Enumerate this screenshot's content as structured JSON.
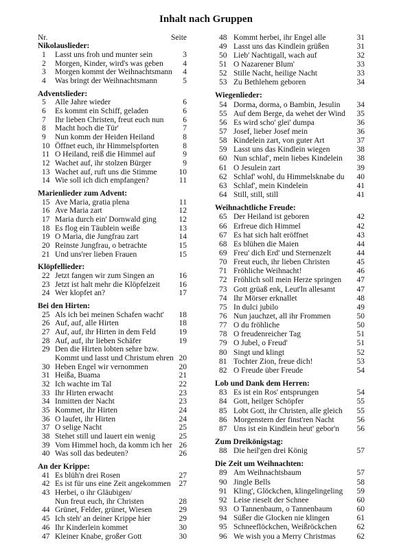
{
  "title": "Inhalt nach Gruppen",
  "header": {
    "nr": "Nr.",
    "page": "Seite"
  },
  "columns": [
    {
      "blocks": [
        {
          "title": "Nikolauslieder:",
          "entries": [
            {
              "nr": 1,
              "lines": [
                "Lasst uns froh und munter sein"
              ],
              "page": 3
            },
            {
              "nr": 2,
              "lines": [
                "Morgen, Kinder, wird's was geben"
              ],
              "page": 4
            },
            {
              "nr": 3,
              "lines": [
                "Morgen kommt der Weihnachtsmann"
              ],
              "page": 4
            },
            {
              "nr": 4,
              "lines": [
                "Was bringt der Weihnachtsmann"
              ],
              "page": 5
            }
          ]
        },
        {
          "title": "Adventslieder:",
          "entries": [
            {
              "nr": 5,
              "lines": [
                "Alle Jahre wieder"
              ],
              "page": 6
            },
            {
              "nr": 6,
              "lines": [
                "Es kommt ein Schiff, geladen"
              ],
              "page": 6
            },
            {
              "nr": 7,
              "lines": [
                "Ihr lieben Christen, freut euch nun"
              ],
              "page": 6
            },
            {
              "nr": 8,
              "lines": [
                "Macht hoch die Tür'"
              ],
              "page": 7
            },
            {
              "nr": 9,
              "lines": [
                "Nun komm der Heiden Heiland"
              ],
              "page": 8
            },
            {
              "nr": 10,
              "lines": [
                "Öffnet euch, ihr Himmelspforten"
              ],
              "page": 8
            },
            {
              "nr": 11,
              "lines": [
                "O Heiland, reiß die Himmel auf"
              ],
              "page": 9
            },
            {
              "nr": 12,
              "lines": [
                "Wachet auf, ihr stolzen Bürger"
              ],
              "page": 9
            },
            {
              "nr": 13,
              "lines": [
                "Wachet auf, ruft uns die Stimme"
              ],
              "page": 10
            },
            {
              "nr": 14,
              "lines": [
                "Wie soll ich dich empfangen?"
              ],
              "page": 11
            }
          ]
        },
        {
          "title": "Marienlieder zum Advent:",
          "entries": [
            {
              "nr": 15,
              "lines": [
                "Ave Maria, gratia plena"
              ],
              "page": 11
            },
            {
              "nr": 16,
              "lines": [
                "Ave Maria zart"
              ],
              "page": 12
            },
            {
              "nr": 17,
              "lines": [
                "Maria durch ein' Dornwald ging"
              ],
              "page": 12
            },
            {
              "nr": 18,
              "lines": [
                "Es flog ein Täublein weiße"
              ],
              "page": 13
            },
            {
              "nr": 19,
              "lines": [
                "O Maria, die Jungfrau zart"
              ],
              "page": 14
            },
            {
              "nr": 20,
              "lines": [
                "Reinste Jungfrau, o betrachte"
              ],
              "page": 15
            },
            {
              "nr": 21,
              "lines": [
                "Und uns'rer lieben Frauen"
              ],
              "page": 15
            }
          ]
        },
        {
          "title": "Klöpfellieder:",
          "entries": [
            {
              "nr": 22,
              "lines": [
                "Jetzt fangen wir zum Singen an"
              ],
              "page": 16
            },
            {
              "nr": 23,
              "lines": [
                "Jetzt ist halt mehr die Klöpfelzeit"
              ],
              "page": 16
            },
            {
              "nr": 24,
              "lines": [
                "Wer klopfet an?"
              ],
              "page": 17
            }
          ]
        },
        {
          "title": "Bei den Hirten:",
          "entries": [
            {
              "nr": 25,
              "lines": [
                "Als ich bei meinen Schafen wacht'"
              ],
              "page": 18
            },
            {
              "nr": 26,
              "lines": [
                "Auf, auf, alle Hirten"
              ],
              "page": 18
            },
            {
              "nr": 27,
              "lines": [
                "Auf, auf, ihr Hirten in dem Feld"
              ],
              "page": 19
            },
            {
              "nr": 28,
              "lines": [
                "Auf, auf, ihr lieben Schäfer"
              ],
              "page": 19
            },
            {
              "nr": 29,
              "lines": [
                "Den die Hirten lobten sehre bzw.",
                "Kommt und lasst und Christum ehren"
              ],
              "page": 20
            },
            {
              "nr": 30,
              "lines": [
                "Heben Engel wir vernommen"
              ],
              "page": 20
            },
            {
              "nr": 31,
              "lines": [
                "Heißa, Buama"
              ],
              "page": 21
            },
            {
              "nr": 32,
              "lines": [
                "Ich wachte im Tal"
              ],
              "page": 22
            },
            {
              "nr": 33,
              "lines": [
                "Ihr Hirten erwacht"
              ],
              "page": 23
            },
            {
              "nr": 34,
              "lines": [
                "Inmitten der Nacht"
              ],
              "page": 23
            },
            {
              "nr": 35,
              "lines": [
                "Kommet, ihr Hirten"
              ],
              "page": 24
            },
            {
              "nr": 36,
              "lines": [
                "O laufet, ihr Hirten"
              ],
              "page": 24
            },
            {
              "nr": 37,
              "lines": [
                "O selige Nacht"
              ],
              "page": 25
            },
            {
              "nr": 38,
              "lines": [
                "Stehet still und lauert ein wenig"
              ],
              "page": 25
            },
            {
              "nr": 39,
              "lines": [
                "Vom Himmel hoch, da komm ich her"
              ],
              "page": 26
            },
            {
              "nr": 40,
              "lines": [
                "Was soll das bedeuten?"
              ],
              "page": 26
            }
          ]
        },
        {
          "title": "An der Krippe:",
          "entries": [
            {
              "nr": 41,
              "lines": [
                "Es blüh'n drei Rosen"
              ],
              "page": 27
            },
            {
              "nr": 42,
              "lines": [
                "Es ist für uns eine Zeit angekommen"
              ],
              "page": 27
            },
            {
              "nr": 43,
              "lines": [
                "Herbei, o ihr Gläubigen/",
                "Nun freut euch, ihr Christen"
              ],
              "page": 28
            },
            {
              "nr": 44,
              "lines": [
                "Grünet, Felder, grünet, Wiesen"
              ],
              "page": 29
            },
            {
              "nr": 45,
              "lines": [
                "Ich steh' an deiner Krippe hier"
              ],
              "page": 29
            },
            {
              "nr": 46,
              "lines": [
                "Ihr Kinderlein kommet"
              ],
              "page": 30
            },
            {
              "nr": 47,
              "lines": [
                "Kleiner Knabe, großer Gott"
              ],
              "page": 30
            }
          ]
        }
      ]
    },
    {
      "blocks": [
        {
          "entries": [
            {
              "nr": 48,
              "lines": [
                "Kommt herbei, ihr Engel alle"
              ],
              "page": 31
            },
            {
              "nr": 49,
              "lines": [
                "Lasst uns das Kindlein grüßen"
              ],
              "page": 31
            },
            {
              "nr": 50,
              "lines": [
                "Lieb' Nachtigall, wach auf"
              ],
              "page": 32
            },
            {
              "nr": 51,
              "lines": [
                "O Nazarener Blum'"
              ],
              "page": 33
            },
            {
              "nr": 52,
              "lines": [
                "Stille Nacht, heilige Nacht"
              ],
              "page": 33
            },
            {
              "nr": 53,
              "lines": [
                "Zu Bethlehem geboren"
              ],
              "page": 34
            }
          ]
        },
        {
          "title": "Wiegenlieder:",
          "entries": [
            {
              "nr": 54,
              "lines": [
                "Dorma, dorma, o Bambin, Jesulin"
              ],
              "page": 34
            },
            {
              "nr": 55,
              "lines": [
                "Auf dem Berge, da wehet der Wind"
              ],
              "page": 35
            },
            {
              "nr": 56,
              "lines": [
                "Es wird scho' glei' dumpa"
              ],
              "page": 36
            },
            {
              "nr": 57,
              "lines": [
                "Josef, lieber Josef mein"
              ],
              "page": 36
            },
            {
              "nr": 58,
              "lines": [
                "Kindelein zart, von guter Art"
              ],
              "page": 37
            },
            {
              "nr": 59,
              "lines": [
                "Lasst uns das Kindlein wiegen"
              ],
              "page": 38
            },
            {
              "nr": 60,
              "lines": [
                "Nun schlaf', mein liebes Kindelein"
              ],
              "page": 38
            },
            {
              "nr": 61,
              "lines": [
                "O Jesulein zart"
              ],
              "page": 39
            },
            {
              "nr": 62,
              "lines": [
                "Schlaf' wohl, du Himmelsknabe du"
              ],
              "page": 40
            },
            {
              "nr": 63,
              "lines": [
                "Schlaf', mein Kindelein"
              ],
              "page": 41
            },
            {
              "nr": 64,
              "lines": [
                "Still, still, still"
              ],
              "page": 41
            }
          ]
        },
        {
          "title": "Weihnachtliche Freude:",
          "entries": [
            {
              "nr": 65,
              "lines": [
                "Der Heiland ist geboren"
              ],
              "page": 42
            },
            {
              "nr": 66,
              "lines": [
                "Erfreue dich Himmel"
              ],
              "page": 42
            },
            {
              "nr": 67,
              "lines": [
                "Es hat sich halt eröffnet"
              ],
              "page": 43
            },
            {
              "nr": 68,
              "lines": [
                "Es blühen die Maien"
              ],
              "page": 44
            },
            {
              "nr": 69,
              "lines": [
                "Freu' dich Erd' und Sternenzelt"
              ],
              "page": 44
            },
            {
              "nr": 70,
              "lines": [
                "Freut euch, ihr lieben Christen"
              ],
              "page": 45
            },
            {
              "nr": 71,
              "lines": [
                "Fröhliche Weihnacht!"
              ],
              "page": 46
            },
            {
              "nr": 72,
              "lines": [
                "Fröhlich soll mein Herze springen"
              ],
              "page": 47
            },
            {
              "nr": 73,
              "lines": [
                "Gott grüaß enk, Leut'ln allesamt"
              ],
              "page": 47
            },
            {
              "nr": 74,
              "lines": [
                "Ihr Mörser erknallet"
              ],
              "page": 48
            },
            {
              "nr": 75,
              "lines": [
                "In dulci jubilo"
              ],
              "page": 49
            },
            {
              "nr": 76,
              "lines": [
                "Nun jauchzet, all ihr Frommen"
              ],
              "page": 50
            },
            {
              "nr": 77,
              "lines": [
                "O du fröhliche"
              ],
              "page": 50
            },
            {
              "nr": 78,
              "lines": [
                "O freudenreicher Tag"
              ],
              "page": 51
            },
            {
              "nr": 79,
              "lines": [
                "O Jubel, o Freud'"
              ],
              "page": 51
            },
            {
              "nr": 80,
              "lines": [
                "Singt und klingt"
              ],
              "page": 52
            },
            {
              "nr": 81,
              "lines": [
                "Tochter Zion, freue dich!"
              ],
              "page": 53
            },
            {
              "nr": 82,
              "lines": [
                "O Freude über Freude"
              ],
              "page": 54
            }
          ]
        },
        {
          "title": "Lob und Dank dem Herren:",
          "entries": [
            {
              "nr": 83,
              "lines": [
                "Es ist ein Ros' entsprungen"
              ],
              "page": 54
            },
            {
              "nr": 84,
              "lines": [
                "Gott, heilger Schöpfer"
              ],
              "page": 55
            },
            {
              "nr": 85,
              "lines": [
                "Lobt Gott, ihr Christen, alle gleich"
              ],
              "page": 55
            },
            {
              "nr": 86,
              "lines": [
                "Morgenstern der finst'ren Nacht"
              ],
              "page": 56
            },
            {
              "nr": 87,
              "lines": [
                "Uns ist ein Kindlein heut' gebor'n"
              ],
              "page": 56
            }
          ]
        },
        {
          "title": "Zum Dreikönigstag:",
          "entries": [
            {
              "nr": 88,
              "lines": [
                "Die heil'gen drei König"
              ],
              "page": 57
            }
          ]
        },
        {
          "title": "Die Zeit um Weihnachten:",
          "entries": [
            {
              "nr": 89,
              "lines": [
                "Am Weihnachtsbaum"
              ],
              "page": 57
            },
            {
              "nr": 90,
              "lines": [
                "Jingle Bells"
              ],
              "page": 58
            },
            {
              "nr": 91,
              "lines": [
                "Kling', Glöckchen, klingelingeling"
              ],
              "page": 59
            },
            {
              "nr": 92,
              "lines": [
                "Leise rieselt der Schnee"
              ],
              "page": 60
            },
            {
              "nr": 93,
              "lines": [
                "O Tannenbaum, o Tannenbaum"
              ],
              "page": 60
            },
            {
              "nr": 94,
              "lines": [
                "Süßer die Glocken nie klingen"
              ],
              "page": 61
            },
            {
              "nr": 95,
              "lines": [
                "Schneeflöckchen, Weißröckchen"
              ],
              "page": 62
            },
            {
              "nr": 96,
              "lines": [
                "We wish you a Merry Christmas"
              ],
              "page": 62
            }
          ]
        }
      ]
    }
  ]
}
